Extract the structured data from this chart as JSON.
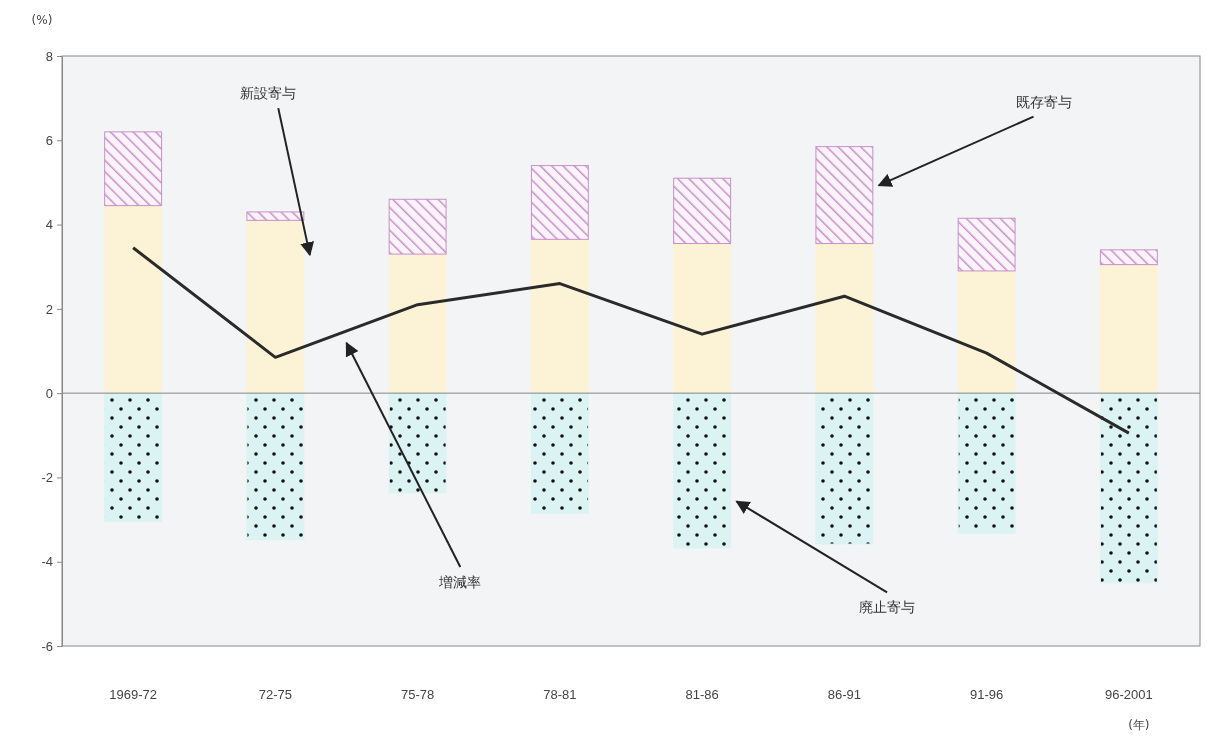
{
  "chart_data": {
    "type": "bar",
    "stacked": true,
    "ylabel": "(%)",
    "xlabel": "(年)",
    "categories": [
      "1969-72",
      "72-75",
      "75-78",
      "78-81",
      "81-86",
      "86-91",
      "91-96",
      "96-2001"
    ],
    "series": [
      {
        "name": "新設寄与",
        "color": "#fcf3d6",
        "values": [
          4.45,
          4.1,
          3.3,
          3.65,
          3.55,
          3.55,
          2.9,
          3.05
        ]
      },
      {
        "name": "既存寄与",
        "color": "#c98fcb",
        "values": [
          1.75,
          0.2,
          1.3,
          1.75,
          1.55,
          2.3,
          1.25,
          0.35
        ]
      },
      {
        "name": "廃止寄与",
        "color": "#dcf3f3",
        "values": [
          -3.05,
          -3.48,
          -2.37,
          -2.85,
          -3.67,
          -3.58,
          -3.32,
          -4.5
        ]
      },
      {
        "name": "増減率",
        "type": "line",
        "color": "#2a2a2a",
        "values": [
          3.45,
          0.85,
          2.1,
          2.6,
          1.4,
          2.3,
          0.95,
          -0.95
        ]
      }
    ],
    "ylim": [
      -6,
      8
    ],
    "yticks": [
      -6,
      -4,
      -2,
      0,
      2,
      4,
      6,
      8
    ],
    "legend": false
  }
}
